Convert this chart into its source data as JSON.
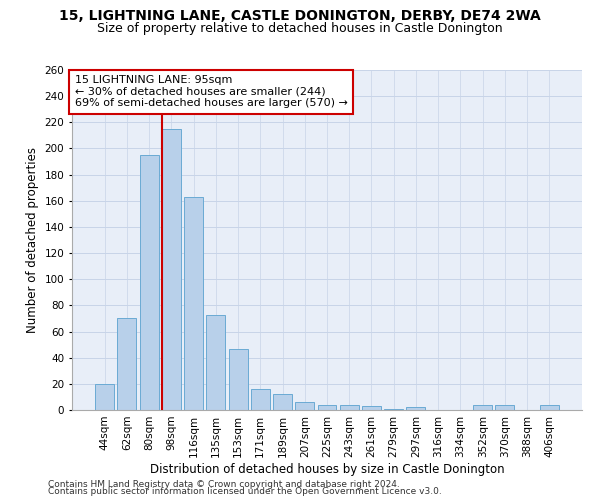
{
  "title1": "15, LIGHTNING LANE, CASTLE DONINGTON, DERBY, DE74 2WA",
  "title2": "Size of property relative to detached houses in Castle Donington",
  "xlabel": "Distribution of detached houses by size in Castle Donington",
  "ylabel": "Number of detached properties",
  "categories": [
    "44sqm",
    "62sqm",
    "80sqm",
    "98sqm",
    "116sqm",
    "135sqm",
    "153sqm",
    "171sqm",
    "189sqm",
    "207sqm",
    "225sqm",
    "243sqm",
    "261sqm",
    "279sqm",
    "297sqm",
    "316sqm",
    "334sqm",
    "352sqm",
    "370sqm",
    "388sqm",
    "406sqm"
  ],
  "values": [
    20,
    70,
    195,
    215,
    163,
    73,
    47,
    16,
    12,
    6,
    4,
    4,
    3,
    1,
    2,
    0,
    0,
    4,
    4,
    0,
    4
  ],
  "bar_color": "#b8d0ea",
  "bar_edge_color": "#6aaad4",
  "vline_color": "#cc0000",
  "vline_x_index": 3,
  "annotation_line1": "15 LIGHTNING LANE: 95sqm",
  "annotation_line2": "← 30% of detached houses are smaller (244)",
  "annotation_line3": "69% of semi-detached houses are larger (570) →",
  "annotation_box_color": "#ffffff",
  "annotation_box_edge": "#cc0000",
  "ylim_max": 260,
  "yticks": [
    0,
    20,
    40,
    60,
    80,
    100,
    120,
    140,
    160,
    180,
    200,
    220,
    240,
    260
  ],
  "grid_color": "#c8d4e8",
  "background_color": "#e8eef8",
  "footnote1": "Contains HM Land Registry data © Crown copyright and database right 2024.",
  "footnote2": "Contains public sector information licensed under the Open Government Licence v3.0.",
  "title1_fontsize": 10,
  "title2_fontsize": 9,
  "xlabel_fontsize": 8.5,
  "ylabel_fontsize": 8.5,
  "tick_fontsize": 7.5,
  "annot_fontsize": 8,
  "footnote_fontsize": 6.5
}
